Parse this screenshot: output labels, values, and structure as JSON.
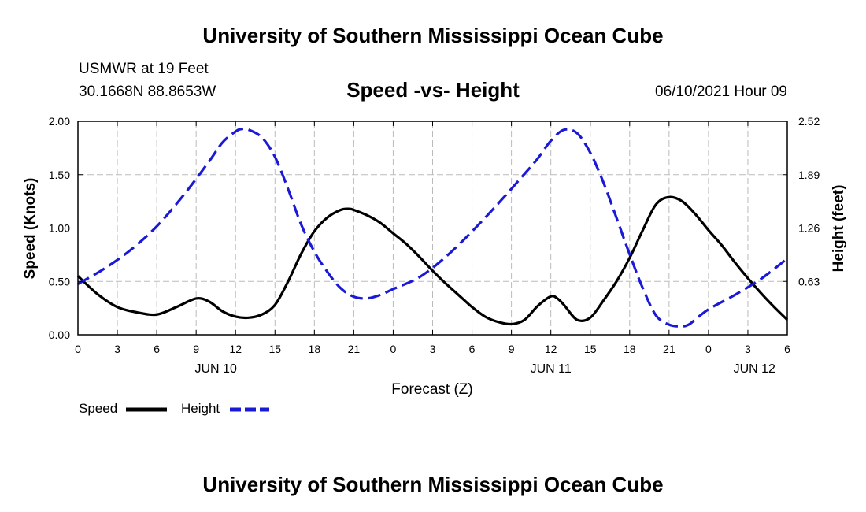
{
  "header": {
    "title": "University of Southern Mississippi Ocean Cube",
    "station": "USMWR at 19 Feet",
    "coordinates": "30.1668N  88.8653W",
    "subtitle": "Speed -vs- Height",
    "datetime": "06/10/2021 Hour 09"
  },
  "footer": {
    "title": "University of Southern Mississippi Ocean Cube"
  },
  "legend": {
    "speed_label": "Speed",
    "height_label": "Height"
  },
  "colors": {
    "speed": "#000000",
    "height": "#1a1ad6",
    "grid": "#bbbbbb"
  },
  "chart_data": {
    "type": "line",
    "title": "Speed -vs- Height",
    "xlabel": "Forecast (Z)",
    "ylabel": "Speed (Knots)",
    "y2label": "Height (feet)",
    "x_range": [
      0,
      54
    ],
    "ylim": [
      0,
      2.0
    ],
    "y2lim": [
      0,
      2.52
    ],
    "x_ticks": [
      {
        "x": 0,
        "label": "0"
      },
      {
        "x": 3,
        "label": "3"
      },
      {
        "x": 6,
        "label": "6"
      },
      {
        "x": 9,
        "label": "9"
      },
      {
        "x": 12,
        "label": "12"
      },
      {
        "x": 15,
        "label": "15"
      },
      {
        "x": 18,
        "label": "18"
      },
      {
        "x": 21,
        "label": "21"
      },
      {
        "x": 24,
        "label": "0"
      },
      {
        "x": 27,
        "label": "3"
      },
      {
        "x": 30,
        "label": "6"
      },
      {
        "x": 33,
        "label": "9"
      },
      {
        "x": 36,
        "label": "12"
      },
      {
        "x": 39,
        "label": "15"
      },
      {
        "x": 42,
        "label": "18"
      },
      {
        "x": 45,
        "label": "21"
      },
      {
        "x": 48,
        "label": "0"
      },
      {
        "x": 51,
        "label": "3"
      },
      {
        "x": 54,
        "label": "6"
      }
    ],
    "date_labels": [
      {
        "x": 10.5,
        "label": "JUN 10"
      },
      {
        "x": 36,
        "label": "JUN 11"
      },
      {
        "x": 51.5,
        "label": "JUN 12"
      }
    ],
    "y_ticks": [
      {
        "value": 0,
        "label": "0.00"
      },
      {
        "value": 0.5,
        "label": "0.50"
      },
      {
        "value": 1.0,
        "label": "1.00"
      },
      {
        "value": 1.5,
        "label": "1.50"
      },
      {
        "value": 2.0,
        "label": "2.00"
      }
    ],
    "y2_ticks": [
      {
        "value": 0.63,
        "label": "0.63"
      },
      {
        "value": 1.26,
        "label": "1.26"
      },
      {
        "value": 1.89,
        "label": "1.89"
      },
      {
        "value": 2.52,
        "label": "2.52"
      }
    ],
    "series": [
      {
        "name": "Speed",
        "axis": "left",
        "style": "solid",
        "x": [
          0,
          1.5,
          3,
          4.5,
          6,
          7.5,
          9,
          10,
          11,
          12,
          13,
          14,
          15,
          16,
          17,
          18,
          19,
          20,
          20.6,
          21,
          22,
          23,
          24,
          25,
          26,
          27,
          28,
          29,
          30,
          31,
          32,
          33,
          34,
          35,
          36,
          36.5,
          37,
          38,
          39,
          40,
          41,
          42,
          43,
          44,
          45,
          46,
          47,
          48,
          49,
          50,
          51,
          52,
          53,
          54
        ],
        "values": [
          0.55,
          0.38,
          0.26,
          0.21,
          0.19,
          0.26,
          0.34,
          0.31,
          0.22,
          0.17,
          0.16,
          0.19,
          0.28,
          0.5,
          0.76,
          0.97,
          1.1,
          1.17,
          1.18,
          1.17,
          1.12,
          1.05,
          0.95,
          0.85,
          0.73,
          0.6,
          0.48,
          0.37,
          0.26,
          0.17,
          0.12,
          0.1,
          0.14,
          0.27,
          0.36,
          0.34,
          0.28,
          0.14,
          0.16,
          0.32,
          0.5,
          0.72,
          0.98,
          1.22,
          1.29,
          1.25,
          1.13,
          0.98,
          0.84,
          0.68,
          0.53,
          0.39,
          0.26,
          0.14
        ]
      },
      {
        "name": "Height",
        "axis": "right",
        "style": "dashed",
        "x": [
          0,
          2,
          4,
          6,
          8,
          10,
          11,
          12,
          12.5,
          13,
          14,
          15,
          16,
          17,
          18,
          19,
          20,
          21,
          22,
          23,
          24,
          26,
          28,
          30,
          32,
          34,
          35,
          36,
          37,
          38,
          39,
          40,
          41,
          42,
          43,
          44,
          45,
          46,
          46.5,
          47,
          48,
          50,
          52,
          54
        ],
        "values": [
          0.6,
          0.78,
          1.0,
          1.28,
          1.64,
          2.05,
          2.27,
          2.4,
          2.43,
          2.42,
          2.33,
          2.1,
          1.72,
          1.3,
          0.98,
          0.74,
          0.55,
          0.45,
          0.43,
          0.47,
          0.54,
          0.68,
          0.92,
          1.22,
          1.55,
          1.9,
          2.08,
          2.29,
          2.42,
          2.38,
          2.15,
          1.8,
          1.38,
          0.95,
          0.55,
          0.23,
          0.12,
          0.1,
          0.12,
          0.18,
          0.3,
          0.47,
          0.66,
          0.9
        ]
      }
    ]
  }
}
